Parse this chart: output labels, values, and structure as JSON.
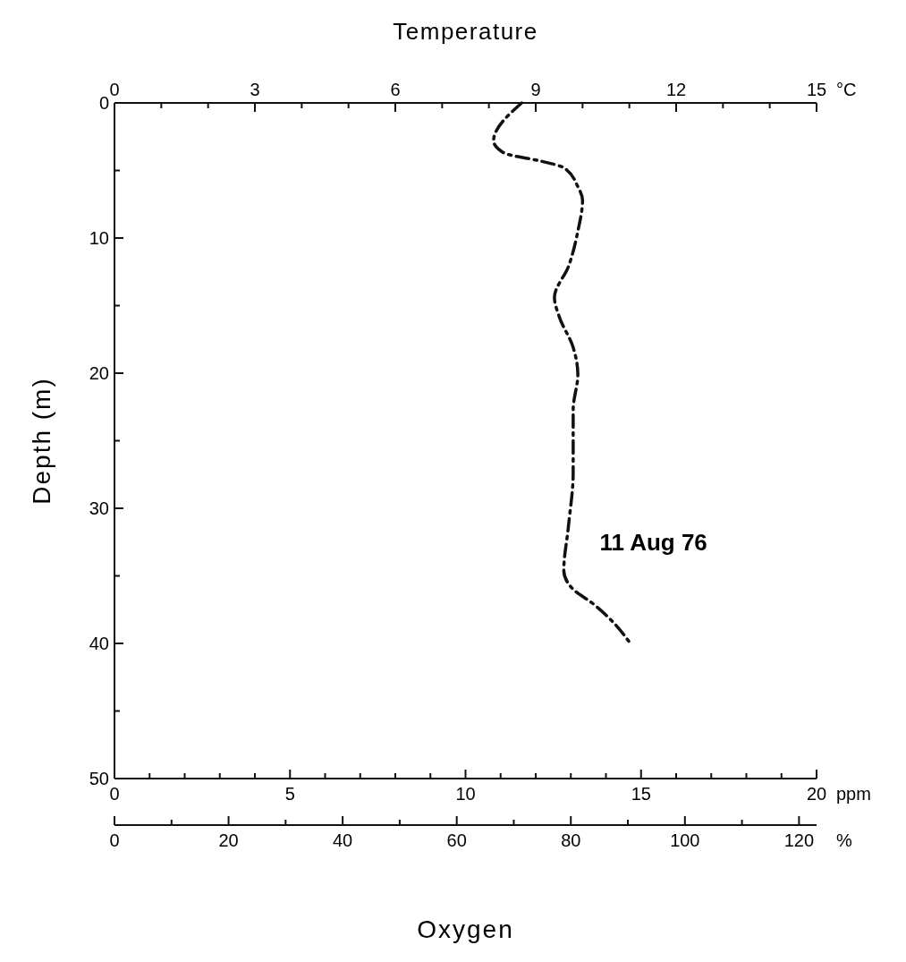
{
  "chart_data": {
    "type": "line",
    "x2label": "Temperature",
    "xlabel": "Oxygen",
    "ylabel": "Depth (m)",
    "x2lim": [
      0,
      15
    ],
    "x2ticks": [
      0,
      {
        "value": 1,
        "label": null
      },
      {
        "value": 2,
        "label": null
      },
      3,
      {
        "value": 4,
        "label": null
      },
      {
        "value": 5,
        "label": null
      },
      6,
      {
        "value": 7,
        "label": null
      },
      {
        "value": 8,
        "label": null
      },
      9,
      {
        "value": 10,
        "label": null
      },
      {
        "value": 11,
        "label": null
      },
      12,
      {
        "value": 13,
        "label": null
      },
      {
        "value": 14,
        "label": null
      },
      15
    ],
    "xlim": [
      0,
      20
    ],
    "xticks": [
      0,
      {
        "value": 1,
        "label": null
      },
      {
        "value": 2,
        "label": null
      },
      {
        "value": 3,
        "label": null
      },
      {
        "value": 4,
        "label": null
      },
      5,
      {
        "value": 6,
        "label": null
      },
      {
        "value": 7,
        "label": null
      },
      {
        "value": 8,
        "label": null
      },
      {
        "value": 9,
        "label": null
      },
      10,
      {
        "value": 11,
        "label": null
      },
      {
        "value": 12,
        "label": null
      },
      {
        "value": 13,
        "label": null
      },
      {
        "value": 14,
        "label": null
      },
      15,
      {
        "value": 16,
        "label": null
      },
      {
        "value": 17,
        "label": null
      },
      {
        "value": 18,
        "label": null
      },
      {
        "value": 19,
        "label": null
      },
      20
    ],
    "ylim": [
      50,
      0
    ],
    "yticks": [
      0,
      {
        "value": 5,
        "label": null
      },
      10,
      {
        "value": 15,
        "label": null
      },
      20,
      {
        "value": 25,
        "label": null
      },
      30,
      {
        "value": 35,
        "label": null
      },
      40,
      {
        "value": 45,
        "label": null
      },
      50
    ],
    "line_style": "dashed",
    "grid": false,
    "annotations": [
      "°C",
      "ppm",
      "%",
      "0",
      "20",
      "40",
      "60",
      "80",
      "100",
      "120"
    ],
    "series": [
      {
        "name": "11 Aug 76",
        "color": "#111111",
        "axis": "x2",
        "x": [
          8.7,
          8.1,
          8.2,
          8.4,
          9.1,
          9.6,
          9.9,
          10.0,
          9.9,
          9.7,
          9.4,
          9.5,
          9.8,
          9.9,
          9.8,
          9.8,
          9.7,
          9.6,
          9.8,
          10.2,
          10.7,
          11.0
        ],
        "values": [
          0,
          2.8,
          3.4,
          3.8,
          4.3,
          4.8,
          6.2,
          7.2,
          9.5,
          12.1,
          14.4,
          15.8,
          18.1,
          20.1,
          22.7,
          27.4,
          31.3,
          34.6,
          36.0,
          37.0,
          38.6,
          39.9
        ]
      }
    ]
  }
}
